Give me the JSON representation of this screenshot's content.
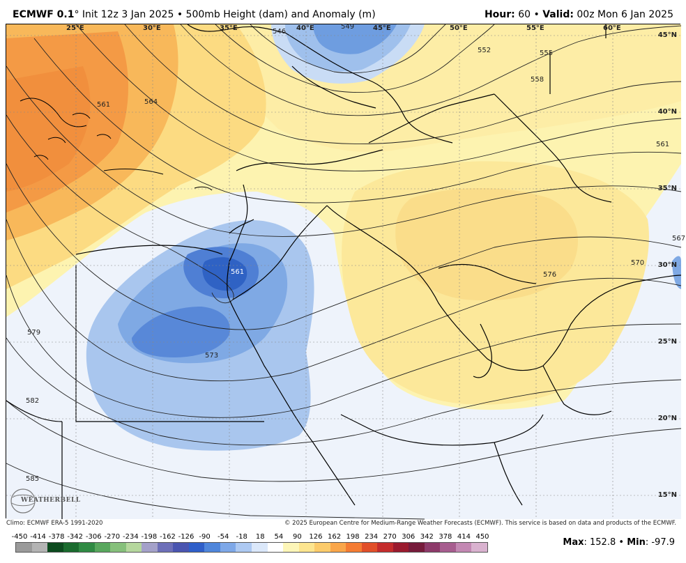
{
  "header": {
    "model": "ECMWF 0.1",
    "degree": "°",
    "init": "Init 12z 3 Jan 2025",
    "bullet": "•",
    "field": "500mb Height (dam) and Anomaly (m)",
    "hour_label": "Hour:",
    "hour": "60",
    "valid_label": "Valid:",
    "valid": "00z Mon 6 Jan 2025"
  },
  "map": {
    "lon_labels": [
      "25°E",
      "30°E",
      "35°E",
      "40°E",
      "45°E",
      "50°E",
      "55°E",
      "60°E"
    ],
    "lat_labels": [
      "45°N",
      "40°N",
      "35°N",
      "30°N",
      "25°N",
      "20°N",
      "15°N"
    ],
    "contour_labels": [
      "546",
      "549",
      "552",
      "555",
      "558",
      "561",
      "564",
      "561",
      "561",
      "567",
      "570",
      "573",
      "576",
      "579",
      "582",
      "585"
    ]
  },
  "footer": {
    "climo": "Climo: ECMWF ERA-5 1991-2020",
    "copyright": "© 2025 European Centre for Medium-Range Weather Forecasts (ECMWF). This service is based on data and products of the ECMWF."
  },
  "colorbar": {
    "ticks": [
      "-450",
      "-414",
      "-378",
      "-342",
      "-306",
      "-270",
      "-234",
      "-198",
      "-162",
      "-126",
      "-90",
      "-54",
      "-18",
      "18",
      "54",
      "90",
      "126",
      "162",
      "198",
      "234",
      "270",
      "306",
      "342",
      "378",
      "414",
      "450"
    ],
    "colors": [
      "#9a9a9a",
      "#b4b4b4",
      "#0c4a1e",
      "#1a6b2e",
      "#2f8a43",
      "#58a75d",
      "#86c07b",
      "#b5d79d",
      "#a4a1c9",
      "#6d6fb8",
      "#4a55b0",
      "#2f5fc9",
      "#4f86db",
      "#7ea8e8",
      "#adc9f2",
      "#dbe8fa",
      "#ffffff",
      "#fdf6b8",
      "#fde58f",
      "#fccb6b",
      "#f9a64a",
      "#f47c33",
      "#e14f29",
      "#c42c2c",
      "#9a1a2e",
      "#761b3b",
      "#8d3a6a",
      "#a75d8f",
      "#c388b3",
      "#d9b2cf"
    ]
  },
  "stats": {
    "max_label": "Max",
    "max": "152.8",
    "min_label": "Min",
    "min": "-97.9"
  },
  "logo": {
    "text": "WEATHERBELL"
  }
}
